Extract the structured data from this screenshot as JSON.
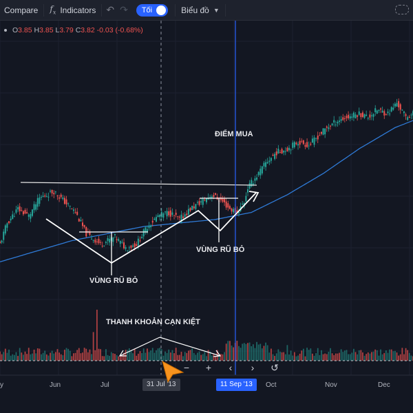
{
  "toolbar": {
    "compare": "Compare",
    "indicators": "Indicators",
    "theme_label": "Tối",
    "chart_type": "Biểu đồ"
  },
  "ohlc": {
    "o_label": "O",
    "o": "3.85",
    "h_label": "H",
    "h": "3.85",
    "l_label": "L",
    "l": "3.79",
    "c_label": "C",
    "c": "3.82",
    "change": "-0.03 (-0.68%)"
  },
  "annotations": {
    "buy_point": "ĐIỂM MUA",
    "shakeout_1": "VÙNG RŨ BỎ",
    "shakeout_2": "VÙNG RŨ BỎ",
    "dry_volume": "THANH KHOẢN CẠN KIỆT"
  },
  "axis": {
    "x_labels": [
      "y",
      "Jun",
      "Jul",
      "Oct",
      "Nov",
      "Dec"
    ],
    "crosshair_date": "31 Jul '13",
    "buy_date": "11 Sep '13"
  },
  "colors": {
    "up": "#26a69a",
    "down": "#ef5350",
    "ma": "#2f7bd8",
    "background": "#131722",
    "accent": "#2962ff"
  },
  "chart_data": {
    "type": "candlestick",
    "x_range": [
      "2013-05-20",
      "2013-12-31"
    ],
    "ohlc_legend": {
      "open": 3.85,
      "high": 3.85,
      "low": 3.79,
      "close": 3.82,
      "change": -0.03,
      "change_pct": -0.68
    },
    "price_path": [
      [
        0,
        2.6
      ],
      [
        4,
        2.9
      ],
      [
        10,
        3.1
      ],
      [
        16,
        3.0
      ],
      [
        22,
        3.25
      ],
      [
        30,
        3.35
      ],
      [
        36,
        3.2
      ],
      [
        42,
        3.05
      ],
      [
        48,
        2.75
      ],
      [
        56,
        2.6
      ],
      [
        64,
        2.7
      ],
      [
        70,
        2.55
      ],
      [
        76,
        2.6
      ],
      [
        82,
        2.85
      ],
      [
        88,
        3.0
      ],
      [
        94,
        3.05
      ],
      [
        100,
        2.95
      ],
      [
        106,
        3.1
      ],
      [
        112,
        3.2
      ],
      [
        118,
        3.3
      ],
      [
        124,
        3.2
      ],
      [
        128,
        3.1
      ],
      [
        132,
        3.05
      ],
      [
        136,
        3.2
      ],
      [
        138,
        3.4
      ],
      [
        144,
        3.6
      ],
      [
        148,
        3.75
      ],
      [
        154,
        3.9
      ],
      [
        160,
        3.95
      ],
      [
        166,
        4.05
      ],
      [
        172,
        4.0
      ],
      [
        178,
        4.15
      ],
      [
        182,
        4.25
      ],
      [
        188,
        4.35
      ],
      [
        194,
        4.4
      ],
      [
        200,
        4.45
      ],
      [
        205,
        4.4
      ],
      [
        210,
        4.5
      ],
      [
        216,
        4.45
      ],
      [
        221,
        4.6
      ],
      [
        226,
        4.4
      ],
      [
        230,
        4.45
      ]
    ],
    "moving_average": [
      [
        0,
        2.35
      ],
      [
        40,
        2.65
      ],
      [
        80,
        2.85
      ],
      [
        120,
        2.95
      ],
      [
        140,
        3.05
      ],
      [
        160,
        3.3
      ],
      [
        180,
        3.6
      ],
      [
        200,
        3.95
      ],
      [
        220,
        4.25
      ],
      [
        230,
        4.35
      ]
    ],
    "volume_spikes": [
      [
        54,
        1.0
      ],
      [
        52,
        0.55
      ],
      [
        139,
        0.35
      ],
      [
        160,
        0.3
      ]
    ],
    "volume_relative": true,
    "resistance_level": 3.35,
    "moving_average_visible": true
  }
}
